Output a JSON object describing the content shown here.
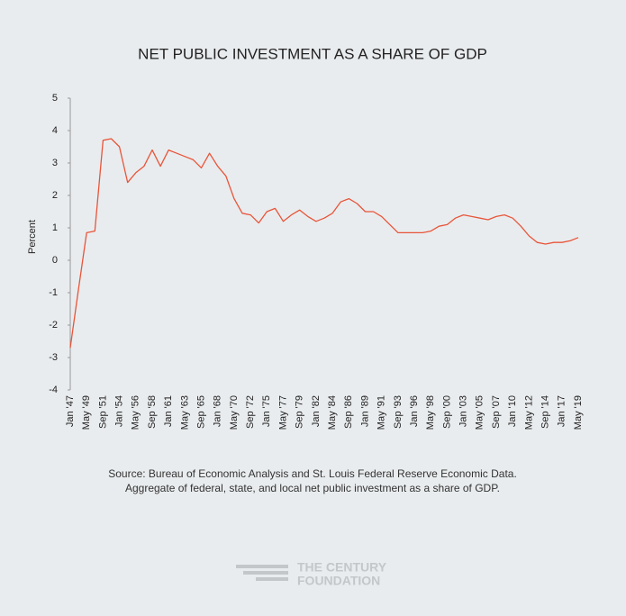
{
  "chart_data": {
    "type": "line",
    "title": "NET PUBLIC INVESTMENT AS A SHARE OF GDP",
    "y_label": "Percent",
    "categories": [
      "Jan '47",
      null,
      "May '49",
      null,
      "Sep '51",
      null,
      "Jan '54",
      null,
      "May '56",
      null,
      "Sep '58",
      null,
      "Jan '61",
      null,
      "May '63",
      null,
      "Sep '65",
      null,
      "Jan '68",
      null,
      "May '70",
      null,
      "Sep '72",
      null,
      "Jan '75",
      null,
      "May '77",
      null,
      "Sep '79",
      null,
      "Jan '82",
      null,
      "May '84",
      null,
      "Sep '86",
      null,
      "Jan '89",
      null,
      "May '91",
      null,
      "Sep '93",
      null,
      "Jan '96",
      null,
      "May '98",
      null,
      "Sep '00",
      null,
      "Jan '03",
      null,
      "May '05",
      null,
      "Sep '07",
      null,
      "Jan '10",
      null,
      "May '12",
      null,
      "Sep '14",
      null,
      "Jan '17",
      null,
      "May '19"
    ],
    "series": [
      {
        "name": "Net public investment",
        "color": "#e8553a",
        "values": [
          -2.7,
          -0.9,
          0.85,
          0.9,
          3.7,
          3.75,
          3.5,
          2.4,
          2.7,
          2.9,
          3.4,
          2.9,
          3.4,
          3.3,
          3.2,
          3.1,
          2.85,
          3.3,
          2.9,
          2.6,
          1.9,
          1.45,
          1.4,
          1.15,
          1.5,
          1.6,
          1.2,
          1.4,
          1.55,
          1.35,
          1.2,
          1.3,
          1.45,
          1.8,
          1.9,
          1.75,
          1.5,
          1.5,
          1.35,
          1.1,
          0.85,
          0.85,
          0.85,
          0.85,
          0.9,
          1.05,
          1.1,
          1.3,
          1.4,
          1.35,
          1.3,
          1.25,
          1.35,
          1.4,
          1.3,
          1.05,
          0.75,
          0.55,
          0.5,
          0.55,
          0.55,
          0.6,
          0.7
        ]
      }
    ],
    "ylim": [
      -4,
      5
    ],
    "yticks": [
      -4,
      -3,
      -2,
      -1,
      0,
      1,
      2,
      3,
      4,
      5
    ],
    "grid": false,
    "source": [
      "Source: Bureau of Economic Analysis and St. Louis Federal Reserve Economic Data.",
      "Aggregate of federal, state, and local net public investment as a share of GDP."
    ],
    "logo": [
      "THE CENTURY",
      "FOUNDATION"
    ]
  }
}
